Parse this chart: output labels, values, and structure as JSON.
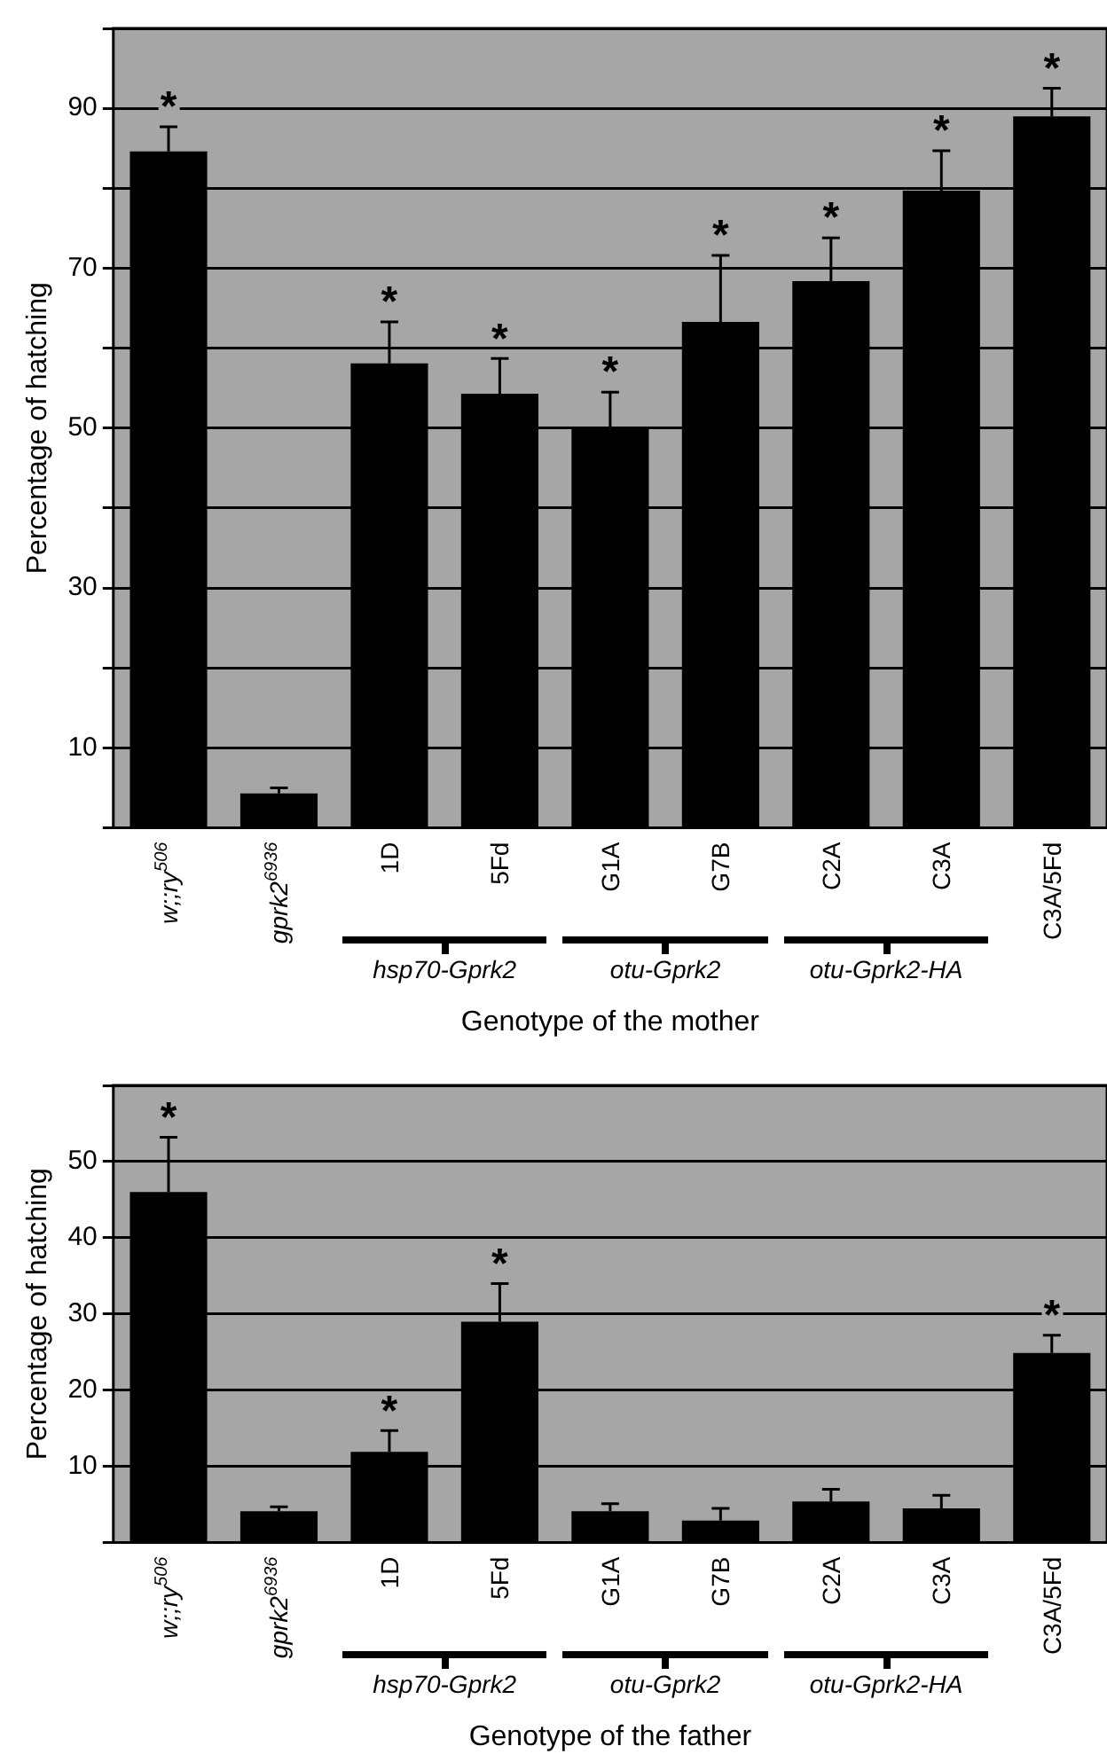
{
  "chart_data": [
    {
      "type": "bar",
      "xlabel": "Genotype of the mother",
      "ylabel": "Percentage of hatching",
      "categories": [
        "w;;ry$^{506}$",
        "gprk2$^{6936}$",
        "1D",
        "5Fd",
        "G1A",
        "G7B",
        "C2A",
        "C3A",
        "C3A/5Fd"
      ],
      "series": [
        {
          "color": "#000000",
          "values": [
            84.6,
            4.3,
            58.1,
            54.3,
            50.0,
            63.3,
            68.4,
            79.7,
            89.0
          ],
          "errors": [
            [
              84.6,
              87.7
            ],
            [
              4.3,
              5.0
            ],
            [
              58.1,
              63.3
            ],
            [
              54.3,
              58.7
            ],
            [
              50.0,
              54.5
            ],
            [
              63.3,
              71.6
            ],
            [
              68.4,
              73.8
            ],
            [
              79.7,
              84.7
            ],
            [
              89.0,
              92.5
            ]
          ]
        }
      ],
      "ylim": [
        0,
        100
      ],
      "yticks": [
        {
          "value": 0,
          "label": null
        },
        10,
        {
          "value": 20,
          "label": null
        },
        30,
        {
          "value": 40,
          "label": null
        },
        50,
        {
          "value": 60,
          "label": null
        },
        70,
        {
          "value": 80,
          "label": null
        },
        90,
        {
          "value": 100,
          "label": null
        }
      ],
      "grid": "y",
      "legend": false,
      "annotations": [
        "hsp70-Gprk2",
        "otu-Gprk2",
        "otu-Gprk2-HA",
        {
          "text": "*",
          "x": "w;;ry$^{506}$",
          "y": 87.7
        },
        {
          "text": "*",
          "x": "1D",
          "y": 63.3
        },
        {
          "text": "*",
          "x": "5Fd",
          "y": 58.7
        },
        {
          "text": "*",
          "x": "G1A",
          "y": 54.5
        },
        {
          "text": "*",
          "x": "G7B",
          "y": 71.6
        },
        {
          "text": "*",
          "x": "C2A",
          "y": 73.8
        },
        {
          "text": "*",
          "x": "C3A",
          "y": 84.7
        },
        {
          "text": "*",
          "x": "C3A/5Fd",
          "y": 92.5
        }
      ]
    },
    {
      "type": "bar",
      "xlabel": "Genotype of the father",
      "ylabel": "Percentage of hatching",
      "categories": [
        "w;;ry$^{506}$",
        "gprk2$^{6936}$",
        "1D",
        "5Fd",
        "G1A",
        "G7B",
        "C2A",
        "C3A",
        "C3A/5Fd"
      ],
      "series": [
        {
          "color": "#000000",
          "values": [
            46.0,
            4.1,
            11.9,
            29.0,
            4.1,
            2.9,
            5.4,
            4.5,
            24.9
          ],
          "errors": [
            [
              46.0,
              53.2
            ],
            [
              4.1,
              4.7
            ],
            [
              11.9,
              14.7
            ],
            [
              29.0,
              34.0
            ],
            [
              4.1,
              5.1
            ],
            [
              2.9,
              4.5
            ],
            [
              5.4,
              7.0
            ],
            [
              4.5,
              6.2
            ],
            [
              24.9,
              27.2
            ]
          ]
        }
      ],
      "ylim": [
        0,
        60
      ],
      "yticks": [
        {
          "value": 0,
          "label": null
        },
        10,
        20,
        30,
        40,
        50,
        {
          "value": 60,
          "label": null
        }
      ],
      "grid": "y",
      "legend": false,
      "annotations": [
        "hsp70-Gprk2",
        "otu-Gprk2",
        "otu-Gprk2-HA",
        {
          "text": "*",
          "x": "w;;ry$^{506}$",
          "y": 53.2
        },
        {
          "text": "*",
          "x": "1D",
          "y": 14.7
        },
        {
          "text": "*",
          "x": "5Fd",
          "y": 34.0
        },
        {
          "text": "*",
          "x": "C3A/5Fd",
          "y": 27.2
        }
      ]
    }
  ]
}
